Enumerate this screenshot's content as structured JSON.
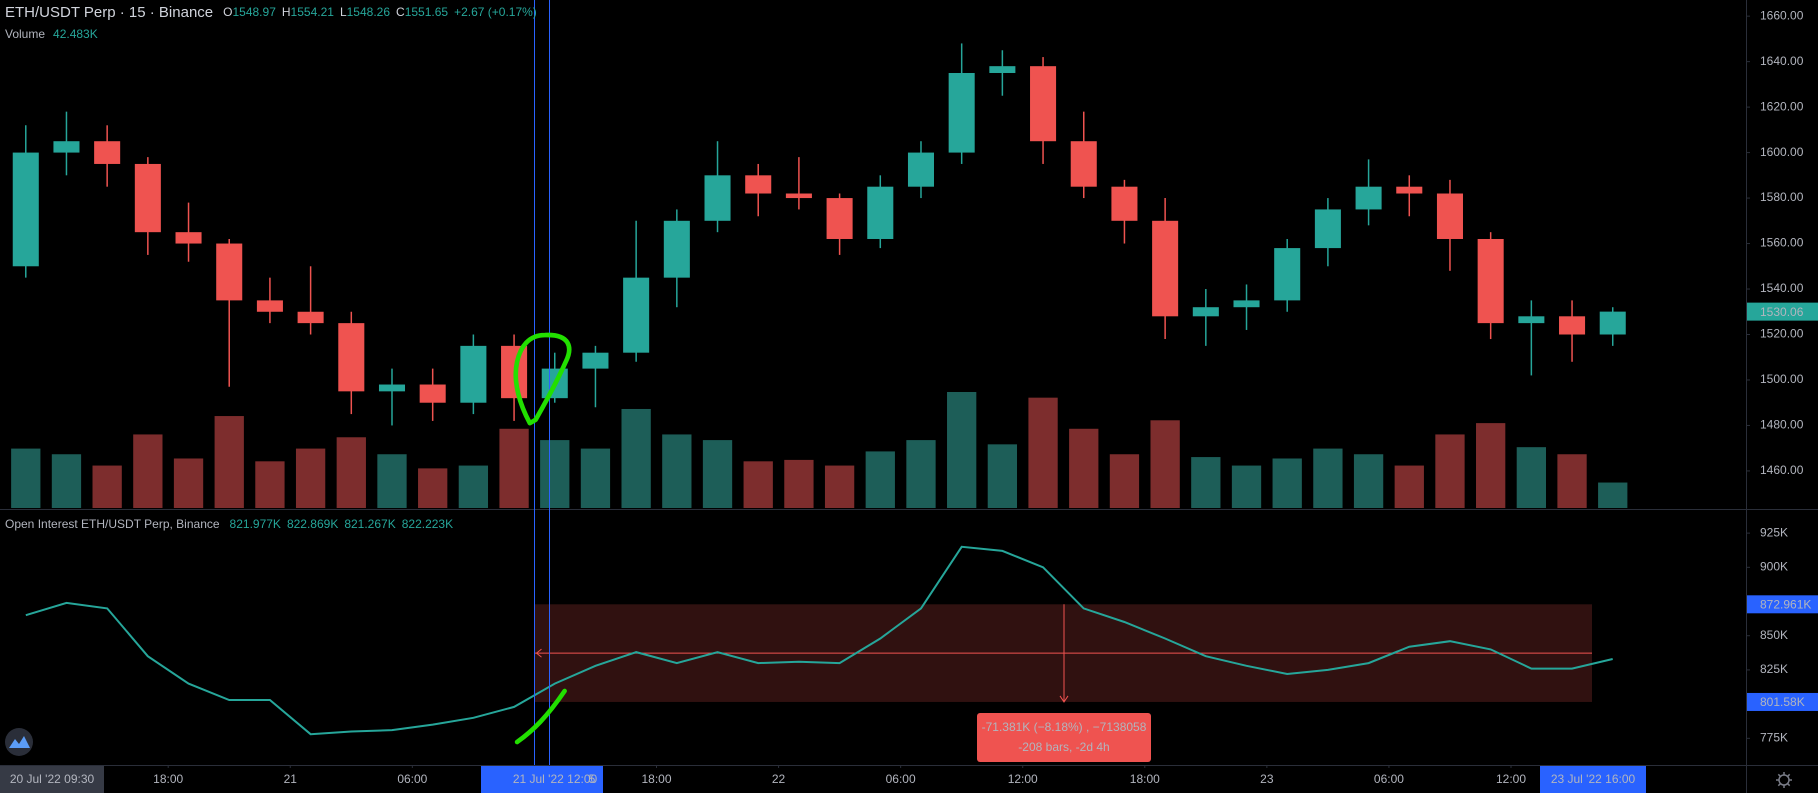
{
  "chart_data": [
    {
      "type": "candlestick",
      "title": "ETH/USDT Perp · 15 · Binance",
      "legend": [
        {
          "label": "O",
          "value": 1548.97
        },
        {
          "label": "H",
          "value": 1554.21
        },
        {
          "label": "L",
          "value": 1548.26
        },
        {
          "label": "C",
          "value": 1551.65
        }
      ],
      "change": "+2.67 (+0.17%)",
      "volume_title": "Volume",
      "volume_legend": {
        "value": 42483,
        "label": "42.483K"
      },
      "x": [
        "2022-07-20T10:00",
        "2022-07-20T12:00",
        "2022-07-20T14:00",
        "2022-07-20T16:00",
        "2022-07-20T18:00",
        "2022-07-20T20:00",
        "2022-07-20T22:00",
        "2022-07-21T00:00",
        "2022-07-21T02:00",
        "2022-07-21T04:00",
        "2022-07-21T06:00",
        "2022-07-21T08:00",
        "2022-07-21T10:00",
        "2022-07-21T12:00",
        "2022-07-21T14:00",
        "2022-07-21T16:00",
        "2022-07-21T18:00",
        "2022-07-21T20:00",
        "2022-07-21T22:00",
        "2022-07-22T00:00",
        "2022-07-22T02:00",
        "2022-07-22T04:00",
        "2022-07-22T06:00",
        "2022-07-22T08:00",
        "2022-07-22T10:00",
        "2022-07-22T12:00",
        "2022-07-22T14:00",
        "2022-07-22T16:00",
        "2022-07-22T18:00",
        "2022-07-22T20:00",
        "2022-07-22T22:00",
        "2022-07-23T00:00",
        "2022-07-23T02:00",
        "2022-07-23T04:00",
        "2022-07-23T06:00",
        "2022-07-23T08:00",
        "2022-07-23T10:00",
        "2022-07-23T12:00",
        "2022-07-23T14:00",
        "2022-07-23T16:00"
      ],
      "ohlc": [
        [
          1550,
          1612,
          1545,
          1600
        ],
        [
          1600,
          1618,
          1590,
          1605
        ],
        [
          1605,
          1612,
          1585,
          1595
        ],
        [
          1595,
          1598,
          1555,
          1565
        ],
        [
          1565,
          1578,
          1552,
          1560
        ],
        [
          1560,
          1562,
          1497,
          1535
        ],
        [
          1535,
          1545,
          1525,
          1530
        ],
        [
          1530,
          1550,
          1520,
          1525
        ],
        [
          1525,
          1530,
          1485,
          1495
        ],
        [
          1495,
          1505,
          1480,
          1498
        ],
        [
          1498,
          1505,
          1482,
          1490
        ],
        [
          1490,
          1520,
          1485,
          1515
        ],
        [
          1515,
          1520,
          1482,
          1492
        ],
        [
          1492,
          1512,
          1490,
          1505
        ],
        [
          1505,
          1515,
          1488,
          1512
        ],
        [
          1512,
          1570,
          1508,
          1545
        ],
        [
          1545,
          1575,
          1532,
          1570
        ],
        [
          1570,
          1605,
          1565,
          1590
        ],
        [
          1590,
          1595,
          1572,
          1582
        ],
        [
          1582,
          1598,
          1575,
          1580
        ],
        [
          1580,
          1582,
          1555,
          1562
        ],
        [
          1562,
          1590,
          1558,
          1585
        ],
        [
          1585,
          1605,
          1580,
          1600
        ],
        [
          1600,
          1648,
          1595,
          1635
        ],
        [
          1635,
          1645,
          1625,
          1638
        ],
        [
          1638,
          1642,
          1595,
          1605
        ],
        [
          1605,
          1618,
          1580,
          1585
        ],
        [
          1585,
          1588,
          1560,
          1570
        ],
        [
          1570,
          1580,
          1518,
          1528
        ],
        [
          1528,
          1540,
          1515,
          1532
        ],
        [
          1532,
          1542,
          1522,
          1535
        ],
        [
          1535,
          1562,
          1530,
          1558
        ],
        [
          1558,
          1580,
          1550,
          1575
        ],
        [
          1575,
          1597,
          1568,
          1585
        ],
        [
          1585,
          1590,
          1572,
          1582
        ],
        [
          1582,
          1588,
          1548,
          1562
        ],
        [
          1562,
          1565,
          1518,
          1525
        ],
        [
          1525,
          1535,
          1502,
          1528
        ],
        [
          1528,
          1535,
          1508,
          1520
        ],
        [
          1520,
          1532,
          1515,
          1530.06
        ]
      ],
      "volume": [
        420000,
        380000,
        300000,
        520000,
        350000,
        650000,
        330000,
        420000,
        500000,
        380000,
        280000,
        300000,
        560000,
        480000,
        420000,
        700000,
        520000,
        480000,
        330000,
        340000,
        300000,
        400000,
        480000,
        820000,
        450000,
        780000,
        560000,
        380000,
        620000,
        360000,
        300000,
        350000,
        420000,
        380000,
        300000,
        520000,
        600000,
        430000,
        380000,
        180000
      ],
      "up_color": "#26a69a",
      "down_color": "#ef5350",
      "volume_up_color": "#1d5e58",
      "volume_down_color": "#7d2d2d",
      "xlim": [
        "2022-07-20T09:44",
        "2022-07-23T23:33"
      ],
      "ylim": [
        1443.7,
        1667.1
      ],
      "yticks": [
        {
          "value": 1460,
          "label": "1460.00"
        },
        {
          "value": 1480,
          "label": "1480.00"
        },
        {
          "value": 1500,
          "label": "1500.00"
        },
        {
          "value": 1520,
          "label": "1520.00"
        },
        {
          "value": 1540,
          "label": "1540.00"
        },
        {
          "value": 1560,
          "label": "1560.00"
        },
        {
          "value": 1580,
          "label": "1580.00"
        },
        {
          "value": 1600,
          "label": "1600.00"
        },
        {
          "value": 1620,
          "label": "1620.00"
        },
        {
          "value": 1640,
          "label": "1640.00"
        },
        {
          "value": 1660,
          "label": "1660.00"
        }
      ],
      "grid": false
    },
    {
      "type": "line",
      "title": "Open Interest ETH/USDT Perp, Binance",
      "legend": [
        {
          "value": 821977,
          "label": "821.977K"
        },
        {
          "value": 822869,
          "label": "822.869K"
        },
        {
          "value": 821267,
          "label": "821.267K"
        },
        {
          "value": 822223,
          "label": "822.223K"
        }
      ],
      "x": [
        "2022-07-20T10:00",
        "2022-07-20T12:00",
        "2022-07-20T14:00",
        "2022-07-20T16:00",
        "2022-07-20T18:00",
        "2022-07-20T20:00",
        "2022-07-20T22:00",
        "2022-07-21T00:00",
        "2022-07-21T02:00",
        "2022-07-21T04:00",
        "2022-07-21T06:00",
        "2022-07-21T08:00",
        "2022-07-21T10:00",
        "2022-07-21T12:00",
        "2022-07-21T14:00",
        "2022-07-21T16:00",
        "2022-07-21T18:00",
        "2022-07-21T20:00",
        "2022-07-21T22:00",
        "2022-07-22T00:00",
        "2022-07-22T02:00",
        "2022-07-22T04:00",
        "2022-07-22T06:00",
        "2022-07-22T08:00",
        "2022-07-22T10:00",
        "2022-07-22T12:00",
        "2022-07-22T14:00",
        "2022-07-22T16:00",
        "2022-07-22T18:00",
        "2022-07-22T20:00",
        "2022-07-22T22:00",
        "2022-07-23T00:00",
        "2022-07-23T02:00",
        "2022-07-23T04:00",
        "2022-07-23T06:00",
        "2022-07-23T08:00",
        "2022-07-23T10:00",
        "2022-07-23T12:00",
        "2022-07-23T14:00",
        "2022-07-23T16:00"
      ],
      "values": [
        865000,
        874000,
        870000,
        835000,
        815000,
        803000,
        803000,
        778000,
        780000,
        781000,
        785000,
        790000,
        798000,
        815000,
        828000,
        838000,
        830000,
        838000,
        830000,
        831000,
        830000,
        848000,
        870000,
        915000,
        912000,
        900000,
        870000,
        860000,
        848000,
        835000,
        828000,
        822000,
        825000,
        830000,
        842000,
        846000,
        840000,
        826000,
        826000,
        833000
      ],
      "color": "#26a69a",
      "xlim": [
        "2022-07-20T09:44",
        "2022-07-23T23:33"
      ],
      "ylim": [
        755500,
        941900
      ],
      "yticks": [
        {
          "value": 775000,
          "label": "775K"
        },
        {
          "value": 825000,
          "label": "825K"
        },
        {
          "value": 850000,
          "label": "850K"
        },
        {
          "value": 900000,
          "label": "900K"
        },
        {
          "value": 925000,
          "label": "925K"
        }
      ],
      "xticks": [
        {
          "value": "2022-07-20T18:00",
          "label": "18:00"
        },
        {
          "value": "2022-07-21T00:00",
          "label": "21"
        },
        {
          "value": "2022-07-21T06:00",
          "label": "06:00"
        },
        {
          "value": "2022-07-21T18:00",
          "label": "18:00"
        },
        {
          "value": "2022-07-22T00:00",
          "label": "22"
        },
        {
          "value": "2022-07-22T06:00",
          "label": "06:00"
        },
        {
          "value": "2022-07-22T12:00",
          "label": "12:00"
        },
        {
          "value": "2022-07-22T18:00",
          "label": "18:00"
        },
        {
          "value": "2022-07-23T00:00",
          "label": "23"
        },
        {
          "value": "2022-07-23T06:00",
          "label": "06:00"
        },
        {
          "value": "2022-07-23T12:00",
          "label": "12:00"
        }
      ],
      "grid": false,
      "measure": {
        "top": {
          "value": 872961,
          "label": "872.961K"
        },
        "bottom": {
          "value": 801580,
          "label": "801.58K"
        },
        "lines": [
          "-71.381K (−8.18%) , −7138058",
          "-208 bars, -2d 4h"
        ],
        "color": "#ef5350",
        "label_color": "#2962ff"
      }
    }
  ],
  "time_highlights": [
    "20 Jul '22 09:30",
    "21 Jul '22 12:00",
    "5",
    "23 Jul '22 16:00"
  ]
}
